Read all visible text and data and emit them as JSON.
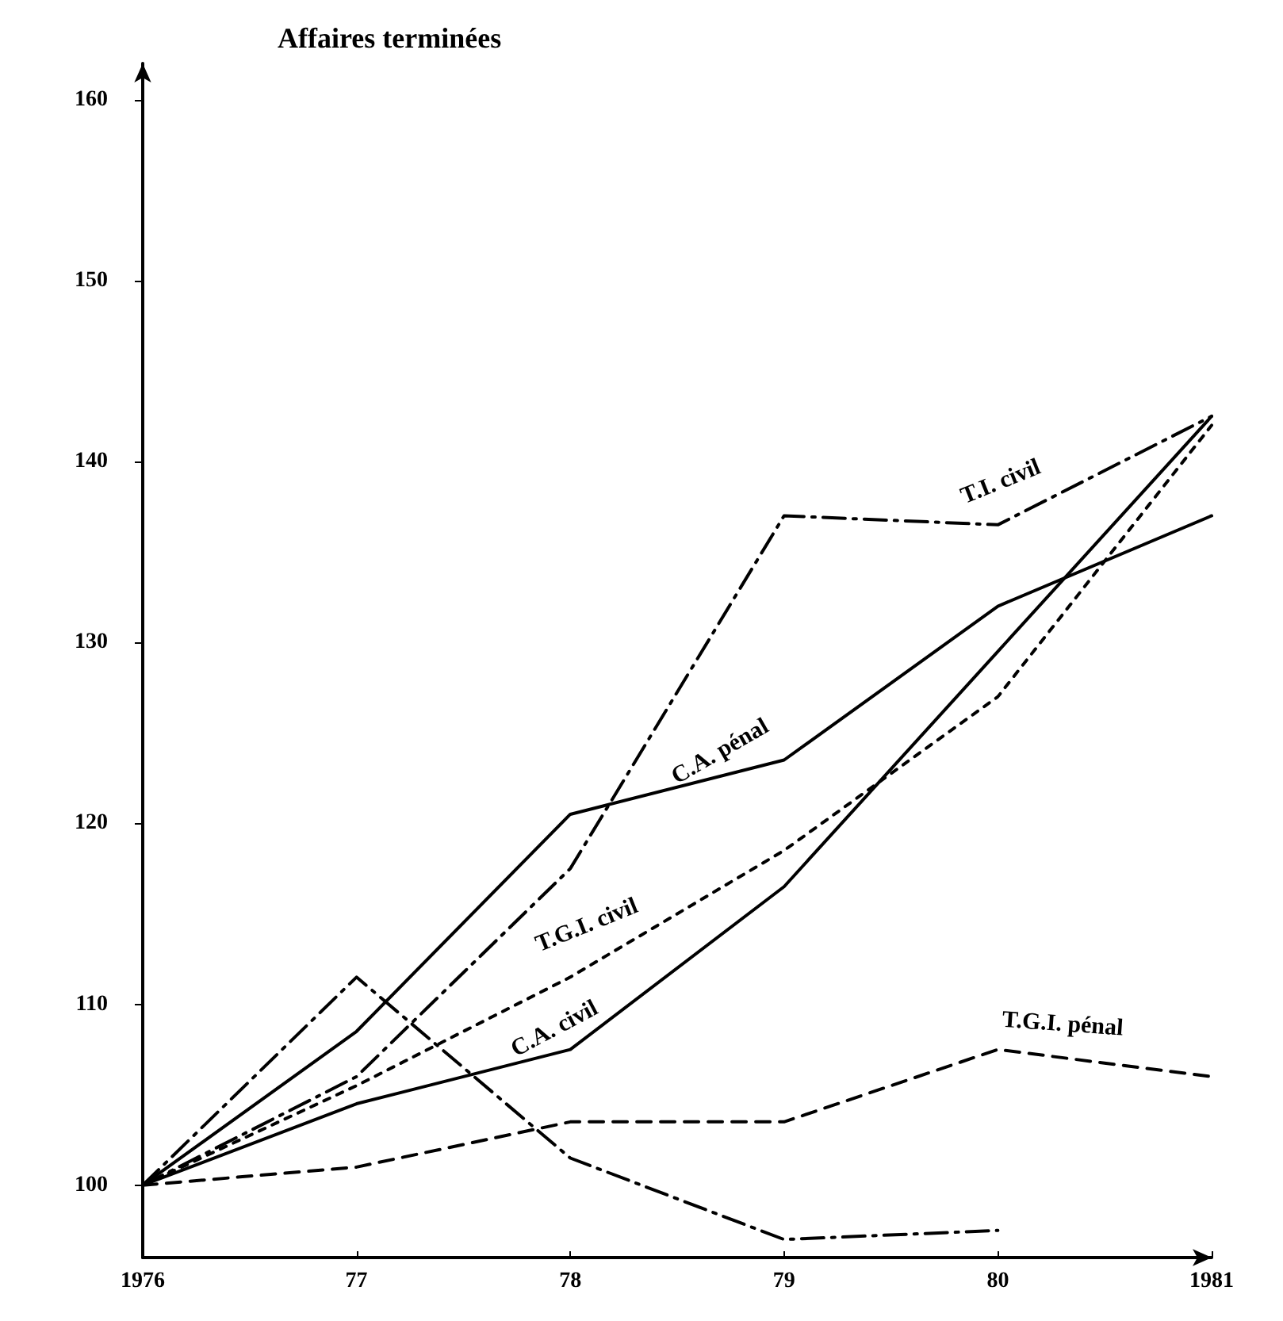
{
  "chart_data": {
    "type": "line",
    "title": "Affaires terminées",
    "categories": [
      "1976",
      "77",
      "78",
      "79",
      "80",
      "1981"
    ],
    "series": [
      {
        "name": "T.I. civil",
        "color": "#000000",
        "line_style": "dashdot",
        "values": [
          100,
          106,
          117.5,
          137,
          136.5,
          142.5
        ]
      },
      {
        "name": "C.A. pénal",
        "color": "#000000",
        "line_style": "solid",
        "values": [
          100,
          108.5,
          120.5,
          123.5,
          132,
          137
        ]
      },
      {
        "name": "T.G.I. civil",
        "color": "#000000",
        "line_style": "dotted",
        "values": [
          100,
          105.5,
          111.5,
          118.5,
          127,
          142
        ]
      },
      {
        "name": "C.A. civil",
        "color": "#000000",
        "line_style": "solid",
        "values": [
          100,
          104.5,
          107.5,
          116.5,
          129.5,
          142.5
        ]
      },
      {
        "name": "T.G.I. pénal",
        "color": "#000000",
        "line_style": "dashed",
        "values": [
          100,
          101,
          103.5,
          103.5,
          107.5,
          106
        ]
      },
      {
        "color": "#000000",
        "line_style": "dashdot",
        "values": [
          100,
          111.5,
          101.5,
          97,
          97.5,
          null
        ]
      }
    ],
    "ylim": [
      96,
      162
    ],
    "yticks": [
      100,
      110,
      120,
      130,
      140,
      150,
      160
    ],
    "grid": false,
    "legend": false,
    "marker": "none"
  }
}
